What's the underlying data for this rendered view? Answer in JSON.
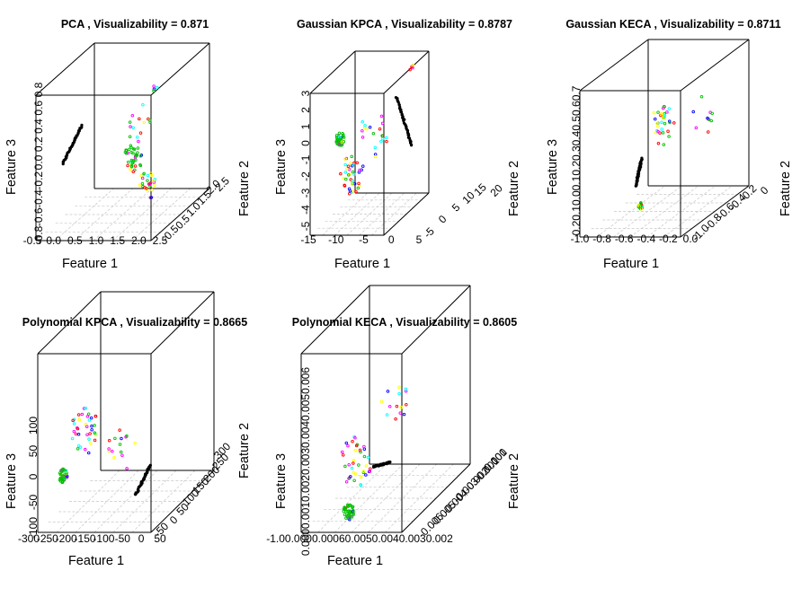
{
  "chart_data": [
    {
      "type": "scatter",
      "title": "PCA , Visualizability = 0.871",
      "xlabel": "Feature 1",
      "ylabel": "Feature 2",
      "zlabel": "Feature 3",
      "x_ticks": [
        "-0.5",
        "0.0",
        "0.5",
        "1.0",
        "1.5",
        "2.0",
        "2.5"
      ],
      "y_ticks": [
        "-0.5",
        "0.5",
        "1.0",
        "1.5",
        "2.0",
        "2.5"
      ],
      "z_ticks": [
        "-0.8",
        "-0.6",
        "-0.4",
        "-0.2",
        "0.0",
        "0.2",
        "0.4",
        "0.6",
        "0.8"
      ],
      "grid": true,
      "colors": [
        "#000000",
        "#ff00ff",
        "#00c000",
        "#00ffff",
        "#ffff00",
        "#ff0000",
        "#0000ff"
      ]
    },
    {
      "type": "scatter",
      "title": "Gaussian KPCA , Visualizability = 0.8787",
      "xlabel": "Feature 1",
      "ylabel": "Feature 2",
      "zlabel": "Feature 3",
      "x_ticks": [
        "-15",
        "-10",
        "-5",
        "0",
        "5"
      ],
      "y_ticks": [
        "-5",
        "0",
        "5",
        "10",
        "15",
        "20"
      ],
      "z_ticks": [
        "-5",
        "-4",
        "-3",
        "-2",
        "-1",
        "0",
        "1",
        "2",
        "3"
      ],
      "grid": true,
      "colors": [
        "#000000",
        "#ff00ff",
        "#00c000",
        "#00ffff",
        "#ffff00",
        "#ff0000",
        "#0000ff"
      ]
    },
    {
      "type": "scatter",
      "title": "Gaussian KECA , Visualizability = 0.8711",
      "xlabel": "Feature 1",
      "ylabel": "Feature 2",
      "zlabel": "Feature 3",
      "x_ticks": [
        "-1.0",
        "-0.8",
        "-0.6",
        "-0.4",
        "-0.2",
        "0.0"
      ],
      "y_ticks": [
        "-1.0",
        "-0.8",
        "-0.6",
        "-0.4",
        "-0.2",
        "0"
      ],
      "z_ticks": [
        "0",
        "0.1",
        "0.2",
        "0.3",
        "0.4",
        "0.5",
        "0.6",
        "0.7"
      ],
      "z_tick_text": "-0.20.10.00.10.20.30.40.50.60.7",
      "grid": true,
      "colors": [
        "#000000",
        "#ff00ff",
        "#00c000",
        "#00ffff",
        "#ffff00",
        "#ff0000",
        "#0000ff"
      ]
    },
    {
      "type": "scatter",
      "title": "Polynomial KPCA , Visualizability = 0.8665",
      "xlabel": "Feature 1",
      "ylabel": "Feature 2",
      "zlabel": "Feature 3",
      "x_ticks": [
        "-300",
        "-250",
        "-200",
        "-150",
        "-100",
        "-50",
        "0",
        "50"
      ],
      "y_ticks": [
        "-50",
        "0",
        "50",
        "100",
        "150",
        "200",
        "250",
        "300"
      ],
      "z_ticks": [
        "-100",
        "-50",
        "0",
        "50",
        "100"
      ],
      "grid": true,
      "colors": [
        "#000000",
        "#ff00ff",
        "#00c000",
        "#00ffff",
        "#ffff00",
        "#ff0000",
        "#0000ff"
      ]
    },
    {
      "type": "scatter",
      "title": "Polynomial KECA , Visualizability = 0.8605",
      "xlabel": "Feature 1",
      "ylabel": "Feature 2",
      "zlabel": "Feature 3",
      "x_ticks": [
        "-0.010",
        "-0.008",
        "-0.006",
        "-0.004",
        "-0.002",
        "0.000",
        "0.002"
      ],
      "x_tick_text": "-1.00.0000.00060.0050.0040.0030.002",
      "y_ticks": [
        "-0.006",
        "-0.005",
        "-0.004",
        "-0.003",
        "-0.002",
        "-0.001",
        "0.000",
        "0.001"
      ],
      "z_ticks": [
        "0.000",
        "0.001",
        "0.002",
        "0.003",
        "0.004",
        "0.005",
        "0.006"
      ],
      "z_tick_text": "0.0000.0010.0020.0030.0040.0050.006",
      "grid": true,
      "colors": [
        "#000000",
        "#ff00ff",
        "#00c000",
        "#00ffff",
        "#ffff00",
        "#ff0000",
        "#0000ff"
      ]
    }
  ]
}
